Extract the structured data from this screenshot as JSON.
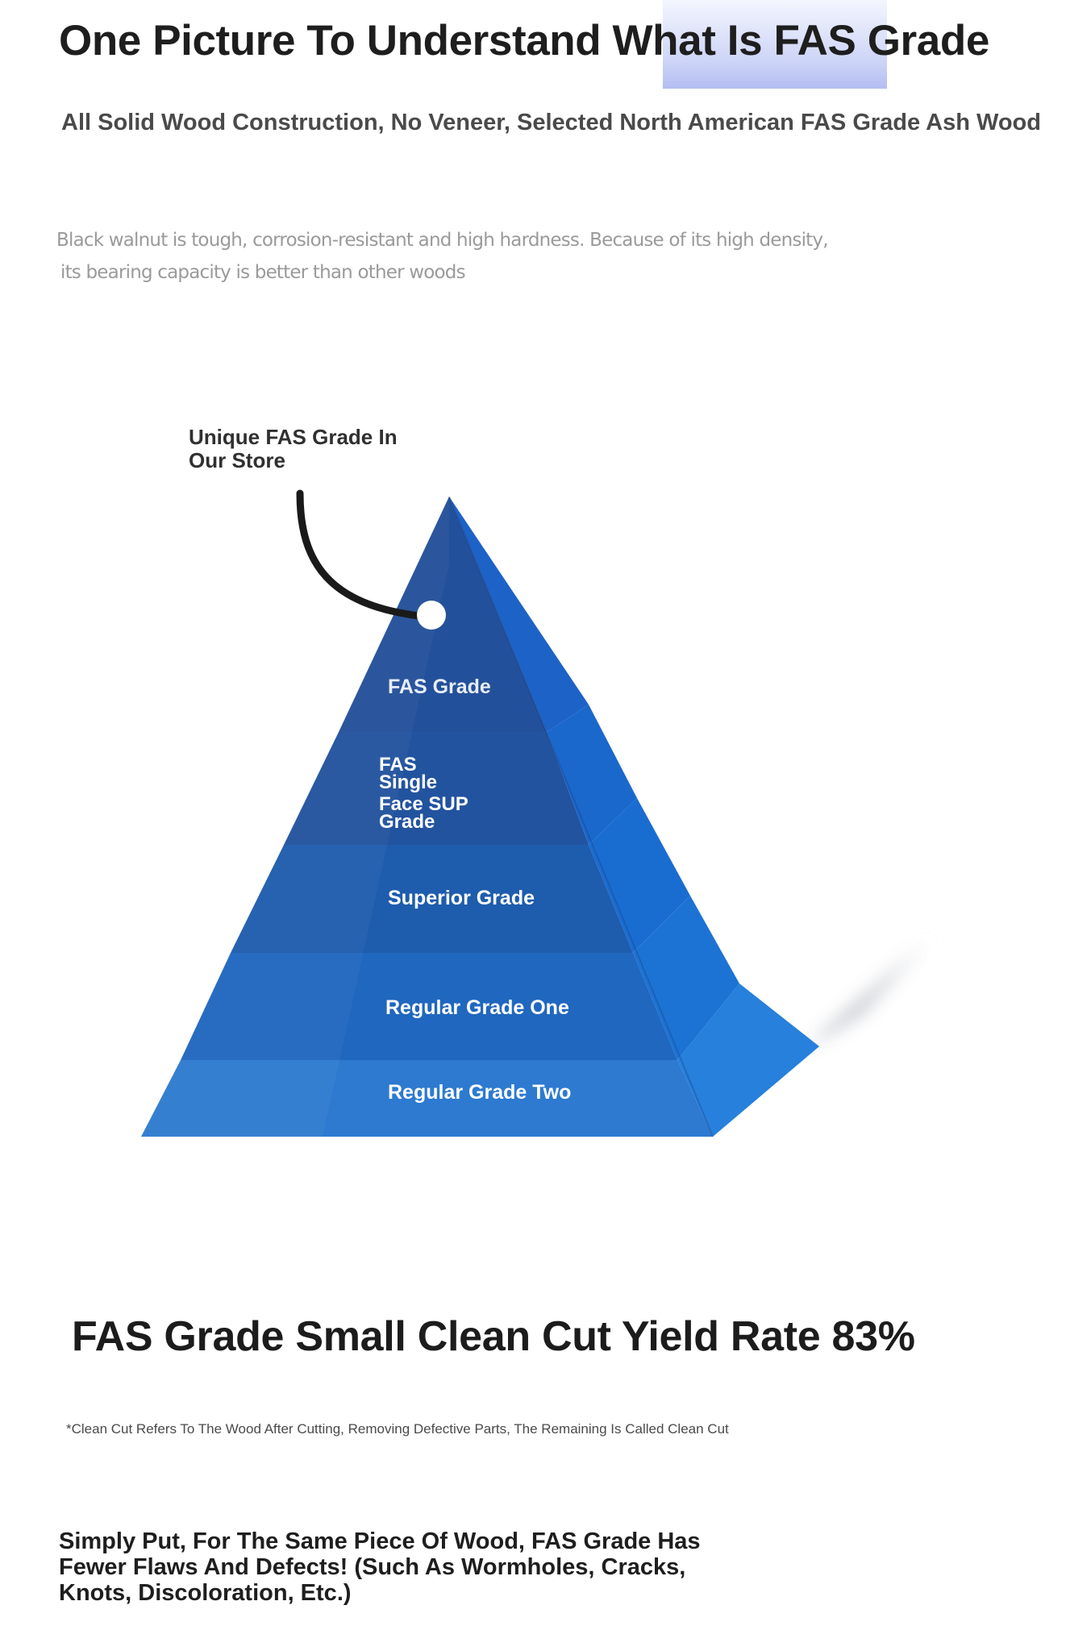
{
  "header": {
    "title": "One Picture To Understand What Is FAS Grade",
    "subtitle": "All Solid Wood Construction, No Veneer, Selected North American FAS Grade Ash Wood"
  },
  "description": {
    "line1": "Black walnut is tough, corrosion-resistant and high hardness. Because of its high density,",
    "line2": "its bearing capacity is better than other woods"
  },
  "diagram": {
    "callout": [
      "Unique FAS Grade In",
      "Our Store"
    ],
    "tiers": [
      {
        "label": "FAS Grade",
        "color": "#23509a"
      },
      {
        "label": [
          "FAS",
          "Single",
          "Face SUP",
          "Grade"
        ],
        "color": "#22539f"
      },
      {
        "label": "Superior Grade",
        "color": "#1e5cad"
      },
      {
        "label": "Regular Grade One",
        "color": "#2067bf"
      },
      {
        "label": "Regular Grade Two",
        "color": "#2d7ad0"
      }
    ]
  },
  "footer": {
    "yield_title": "FAS Grade Small Clean Cut Yield Rate 83%",
    "note": "*Clean Cut Refers To The Wood After Cutting, Removing Defective Parts, The Remaining Is Called Clean Cut",
    "summary": [
      "Simply Put, For The Same Piece Of Wood, FAS Grade Has",
      "Fewer Flaws And Defects! (Such As Wormholes, Cracks,",
      "Knots, Discoloration, Etc.)"
    ]
  }
}
